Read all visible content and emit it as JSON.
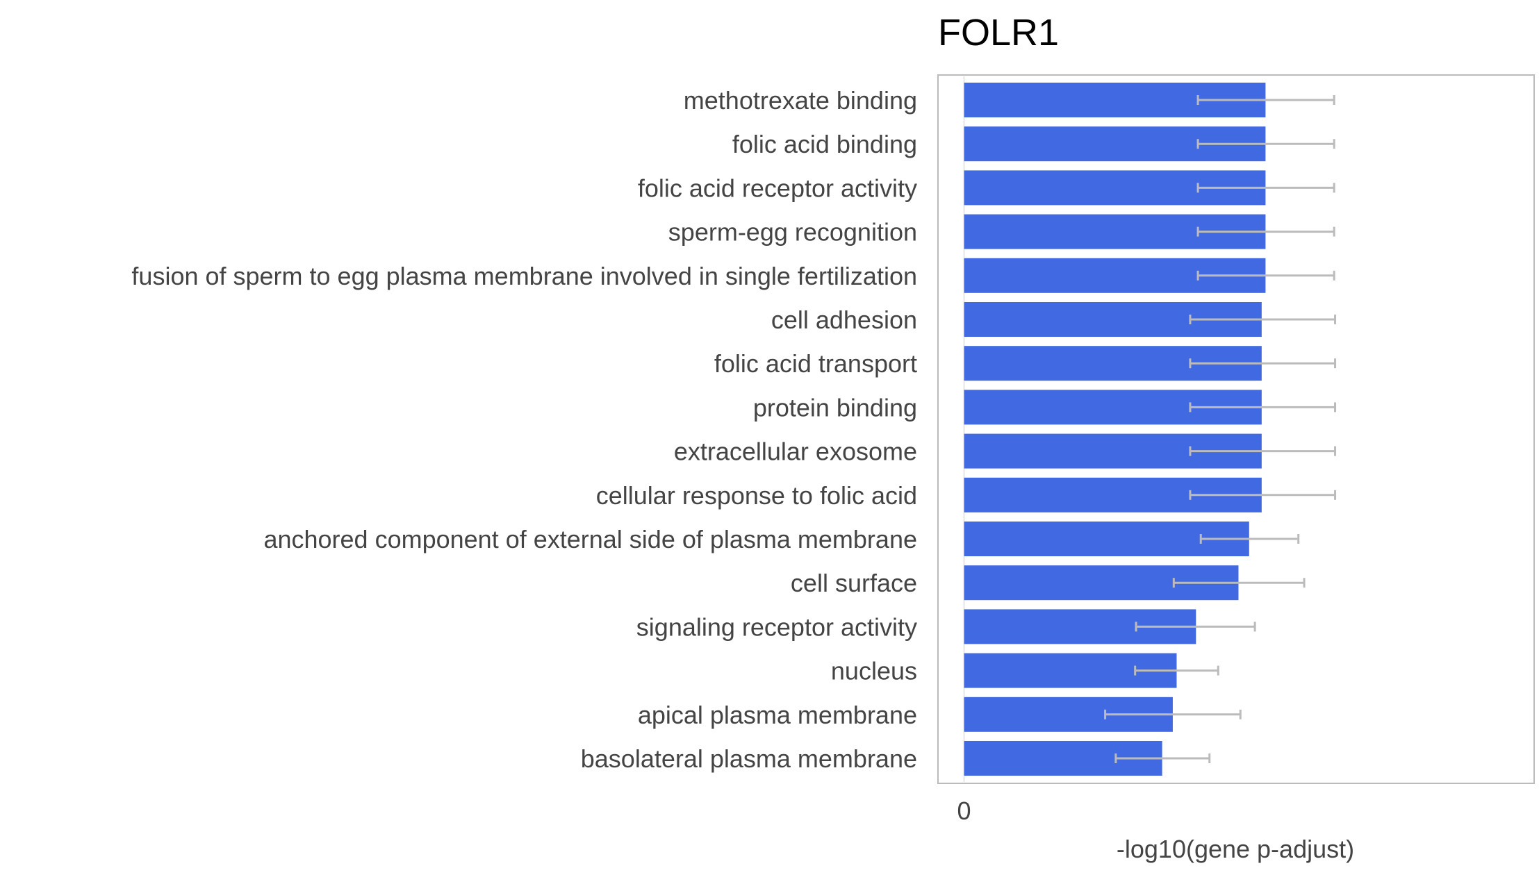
{
  "chart_data": {
    "type": "bar",
    "orientation": "horizontal",
    "title": "FOLR1",
    "xlabel": "-log10(gene p-adjust)",
    "ylabel": "",
    "xlim": [
      -0.27,
      5.9
    ],
    "xticks": [
      0
    ],
    "grid": false,
    "legend": "none",
    "categories": [
      "methotrexate binding",
      "folic acid binding",
      "folic acid receptor activity",
      "sperm-egg recognition",
      "fusion of sperm to egg plasma membrane involved in single fertilization",
      "cell adhesion",
      "folic acid transport",
      "protein binding",
      "extracellular exosome",
      "cellular response to folic acid",
      "anchored component of external side of plasma membrane",
      "cell surface",
      "signaling receptor activity",
      "nucleus",
      "apical plasma membrane",
      "basolateral plasma membrane"
    ],
    "values": [
      3.12,
      3.12,
      3.12,
      3.12,
      3.12,
      3.08,
      3.08,
      3.08,
      3.08,
      3.08,
      2.95,
      2.84,
      2.4,
      2.2,
      2.16,
      2.05
    ],
    "error_low": [
      2.42,
      2.42,
      2.42,
      2.42,
      2.42,
      2.34,
      2.34,
      2.34,
      2.34,
      2.34,
      2.45,
      2.17,
      1.78,
      1.77,
      1.46,
      1.57
    ],
    "error_high": [
      3.83,
      3.83,
      3.83,
      3.83,
      3.83,
      3.84,
      3.84,
      3.84,
      3.84,
      3.84,
      3.46,
      3.52,
      3.01,
      2.63,
      2.86,
      2.54
    ],
    "colors": {
      "bar": "#4169e1",
      "error": "#bbbbbb",
      "frame": "#bbbbbb",
      "zero_line": "#e6e6e6"
    }
  }
}
